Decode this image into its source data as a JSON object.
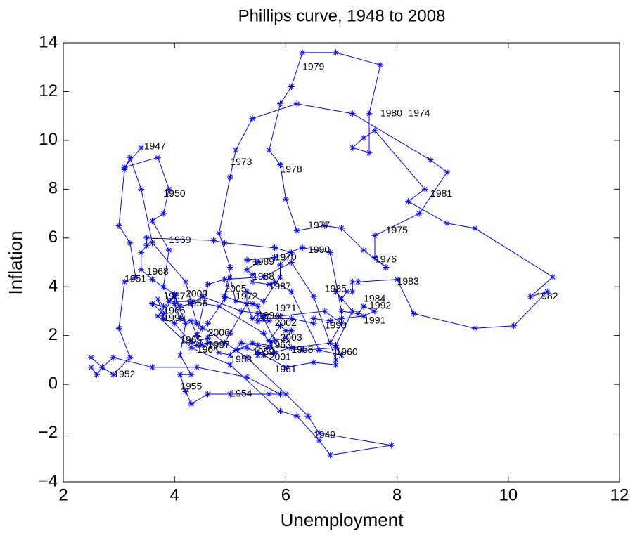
{
  "chart_data": {
    "type": "line",
    "title": "Phillips curve,  1948 to  2008",
    "xlabel": "Unemployment",
    "ylabel": "Inflation",
    "xlim": [
      2,
      12
    ],
    "xticks": [
      2,
      4,
      6,
      8,
      10,
      12
    ],
    "ylim": [
      -4,
      14
    ],
    "yticks": [
      {
        "value": -4,
        "label": "−4"
      },
      {
        "value": -2,
        "label": "−2"
      },
      0,
      2,
      4,
      6,
      8,
      10,
      12,
      14
    ],
    "grid": false,
    "marker": "*",
    "x": [
      3.4,
      3.1,
      3.7,
      3.9,
      3.8,
      3.6,
      3.9,
      3.8,
      3.9,
      3.7,
      4.3,
      5.0,
      5.9,
      6.2,
      6.6,
      6.8,
      7.9,
      6.6,
      6.4,
      6.0,
      5.3,
      4.4,
      4.2,
      3.6,
      3.4,
      3.2,
      3.1,
      3.0,
      3.2,
      3.3,
      3.1,
      3.0,
      3.2,
      2.9,
      2.7,
      2.5,
      2.5,
      2.6,
      2.7,
      2.9,
      3.6,
      4.4,
      5.3,
      5.9,
      5.7,
      5.0,
      4.6,
      4.3,
      4.2,
      4.1,
      4.3,
      4.1,
      4.2,
      4.0,
      4.1,
      4.3,
      4.5,
      5.2,
      5.9,
      6.7,
      7.0,
      6.8,
      6.1,
      5.6,
      5.3,
      5.1,
      5.4,
      6.3,
      6.9,
      6.9,
      6.5,
      6.0,
      5.6,
      5.5,
      5.5,
      5.7,
      5.5,
      5.2,
      5.0,
      4.8,
      4.6,
      4.3,
      4.0,
      3.8,
      3.7,
      3.8,
      3.6,
      3.8,
      4.0,
      3.6,
      3.4,
      3.4,
      3.5,
      3.5,
      4.7,
      4.9,
      5.8,
      6.1,
      5.9,
      5.9,
      5.6,
      5.3,
      5.3,
      4.9,
      5.0,
      4.8,
      5.0,
      5.1,
      5.4,
      6.2,
      7.2,
      8.6,
      8.9,
      8.4,
      7.6,
      7.6,
      7.8,
      7.4,
      7.0,
      6.7,
      6.2,
      6.0,
      5.9,
      5.7,
      5.9,
      6.1,
      6.3,
      6.9,
      7.7,
      7.5,
      7.5,
      7.2,
      7.4,
      7.6,
      8.5,
      8.2,
      8.9,
      9.4,
      10.8,
      10.4,
      10.7,
      10.1,
      9.4,
      8.3,
      8.0,
      7.3,
      7.2,
      7.2,
      7.1,
      7.0,
      6.9,
      7.2,
      6.9,
      7.0,
      6.6,
      6.1,
      5.8,
      5.7,
      5.4,
      5.4,
      5.3,
      5.5,
      5.3,
      5.8,
      6.3,
      6.8,
      7.0,
      7.3,
      7.4,
      7.4,
      7.6,
      7.4,
      7.0,
      6.8,
      6.5,
      6.5,
      6.1,
      5.6,
      5.6,
      5.7,
      5.5,
      5.5,
      5.4,
      5.3,
      5.0,
      4.9,
      4.6,
      4.4,
      4.5,
      4.4,
      4.3,
      4.1,
      4.0,
      4.0,
      3.9,
      4.3,
      4.8,
      5.6,
      5.8,
      5.7,
      5.9,
      6.0,
      6.1,
      6.0,
      5.8,
      5.6,
      5.5,
      5.4,
      5.1,
      5.0,
      4.9,
      4.6,
      4.5,
      4.4,
      4.6,
      4.9,
      5.6,
      6.1,
      6.5,
      6.9
    ],
    "series": [
      {
        "color": "#0000ff",
        "values": [
          9.7,
          8.9,
          9.3,
          8.0,
          7.0,
          6.7,
          5.5,
          4.0,
          3.4,
          2.8,
          1.5,
          0.8,
          -1.1,
          -1.3,
          -2.3,
          -2.9,
          -2.5,
          -2.0,
          -1.3,
          -0.4,
          1.1,
          2.5,
          4.2,
          5.8,
          8.0,
          9.3,
          8.8,
          6.5,
          5.8,
          4.4,
          4.2,
          2.3,
          1.1,
          0.4,
          0.7,
          1.1,
          0.7,
          0.4,
          0.7,
          1.1,
          0.7,
          0.7,
          0.3,
          -0.4,
          -0.4,
          -0.4,
          -0.4,
          -0.8,
          -0.3,
          0.4,
          0.4,
          1.2,
          2.5,
          3.6,
          3.2,
          3.3,
          3.6,
          3.0,
          2.8,
          3.0,
          2.5,
          1.7,
          1.5,
          1.2,
          1.5,
          1.4,
          1.7,
          1.4,
          1.5,
          0.8,
          0.9,
          0.7,
          1.2,
          1.3,
          1.2,
          1.5,
          1.6,
          1.7,
          1.2,
          1.3,
          1.9,
          1.7,
          2.5,
          2.7,
          3.5,
          3.2,
          3.3,
          2.9,
          3.7,
          4.3,
          4.7,
          5.4,
          5.7,
          6.0,
          5.9,
          5.8,
          5.6,
          5.4,
          4.9,
          4.4,
          3.4,
          3.8,
          3.3,
          3.6,
          4.8,
          6.2,
          8.5,
          9.6,
          10.9,
          11.5,
          11.1,
          9.2,
          8.7,
          7.0,
          6.1,
          5.2,
          4.8,
          5.5,
          6.4,
          6.5,
          6.3,
          7.6,
          9.0,
          9.6,
          11.5,
          12.2,
          13.6,
          13.6,
          13.1,
          11.1,
          9.5,
          9.7,
          10.1,
          10.4,
          8.0,
          7.5,
          6.6,
          6.4,
          4.4,
          3.6,
          3.8,
          2.4,
          2.3,
          2.9,
          4.3,
          4.2,
          4.2,
          3.8,
          3.8,
          3.5,
          3.8,
          3.0,
          1.6,
          1.2,
          1.4,
          3.8,
          4.2,
          4.1,
          4.2,
          4.5,
          4.7,
          5.0,
          5.1,
          5.2,
          5.6,
          5.4,
          3.0,
          2.9,
          3.2,
          3.2,
          3.0,
          2.8,
          2.7,
          2.6,
          2.7,
          2.5,
          2.7,
          2.7,
          2.8,
          2.6,
          2.6,
          2.9,
          2.7,
          3.3,
          2.1,
          1.7,
          1.7,
          1.6,
          1.6,
          2.0,
          2.6,
          2.7,
          3.3,
          3.7,
          3.4,
          3.4,
          3.2,
          2.1,
          1.3,
          1.8,
          2.4,
          2.2,
          2.2,
          1.9,
          1.8,
          2.7,
          3.2,
          3.3,
          3.4,
          4.4,
          3.5,
          2.5,
          2.3,
          2.0,
          4.1,
          4.3,
          4.4,
          5.0,
          3.6,
          1.0
        ]
      }
    ],
    "annotations": [
      {
        "text": "1947",
        "x": 3.45,
        "y": 9.75
      },
      {
        "text": "1979",
        "x": 6.3,
        "y": 13.0
      },
      {
        "text": "1980",
        "x": 7.7,
        "y": 11.1
      },
      {
        "text": "1974",
        "x": 8.2,
        "y": 11.1
      },
      {
        "text": "1973",
        "x": 5.0,
        "y": 9.1
      },
      {
        "text": "1978",
        "x": 5.9,
        "y": 8.8
      },
      {
        "text": "1950",
        "x": 3.8,
        "y": 7.8
      },
      {
        "text": "1981",
        "x": 8.6,
        "y": 7.8
      },
      {
        "text": "1977",
        "x": 6.4,
        "y": 6.5
      },
      {
        "text": "1975",
        "x": 7.8,
        "y": 6.3
      },
      {
        "text": "1969",
        "x": 3.9,
        "y": 5.9
      },
      {
        "text": "1990",
        "x": 6.4,
        "y": 5.5
      },
      {
        "text": "1970",
        "x": 5.8,
        "y": 5.2
      },
      {
        "text": "1989",
        "x": 5.4,
        "y": 5.0
      },
      {
        "text": "1976",
        "x": 7.6,
        "y": 5.1
      },
      {
        "text": "1968",
        "x": 3.5,
        "y": 4.6
      },
      {
        "text": "1951",
        "x": 3.1,
        "y": 4.3
      },
      {
        "text": "1983",
        "x": 8.0,
        "y": 4.2
      },
      {
        "text": "1988",
        "x": 5.4,
        "y": 4.4
      },
      {
        "text": "1987",
        "x": 5.7,
        "y": 4.0
      },
      {
        "text": "1985",
        "x": 6.7,
        "y": 3.9
      },
      {
        "text": "2005",
        "x": 4.9,
        "y": 3.9
      },
      {
        "text": "1967",
        "x": 3.8,
        "y": 3.6
      },
      {
        "text": "2000",
        "x": 4.2,
        "y": 3.7
      },
      {
        "text": "1972",
        "x": 5.1,
        "y": 3.6
      },
      {
        "text": "1984",
        "x": 7.4,
        "y": 3.5
      },
      {
        "text": "1982",
        "x": 10.5,
        "y": 3.6
      },
      {
        "text": "1966",
        "x": 3.8,
        "y": 3.0
      },
      {
        "text": "1956",
        "x": 4.2,
        "y": 3.3
      },
      {
        "text": "1992",
        "x": 7.5,
        "y": 3.2
      },
      {
        "text": "1971",
        "x": 5.8,
        "y": 3.1
      },
      {
        "text": "1999",
        "x": 3.8,
        "y": 2.7
      },
      {
        "text": "1994",
        "x": 5.5,
        "y": 2.8
      },
      {
        "text": "2002",
        "x": 5.8,
        "y": 2.5
      },
      {
        "text": "1991",
        "x": 7.4,
        "y": 2.6
      },
      {
        "text": "1993",
        "x": 6.7,
        "y": 2.4
      },
      {
        "text": "2006",
        "x": 4.6,
        "y": 2.1
      },
      {
        "text": "2003",
        "x": 5.9,
        "y": 1.9
      },
      {
        "text": "1965",
        "x": 4.1,
        "y": 1.8
      },
      {
        "text": "1997",
        "x": 4.6,
        "y": 1.6
      },
      {
        "text": "1963",
        "x": 5.7,
        "y": 1.6
      },
      {
        "text": "1964",
        "x": 4.4,
        "y": 1.4
      },
      {
        "text": "1958",
        "x": 6.1,
        "y": 1.4
      },
      {
        "text": "1960",
        "x": 6.9,
        "y": 1.3
      },
      {
        "text": "1959",
        "x": 5.4,
        "y": 1.3
      },
      {
        "text": "2001",
        "x": 5.7,
        "y": 1.1
      },
      {
        "text": "1953",
        "x": 5.0,
        "y": 1.0
      },
      {
        "text": "1961",
        "x": 5.8,
        "y": 0.6
      },
      {
        "text": "1952",
        "x": 2.9,
        "y": 0.4
      },
      {
        "text": "1955",
        "x": 4.1,
        "y": -0.1
      },
      {
        "text": "1954",
        "x": 5.0,
        "y": -0.4
      },
      {
        "text": "1949",
        "x": 6.5,
        "y": -2.1
      }
    ]
  }
}
